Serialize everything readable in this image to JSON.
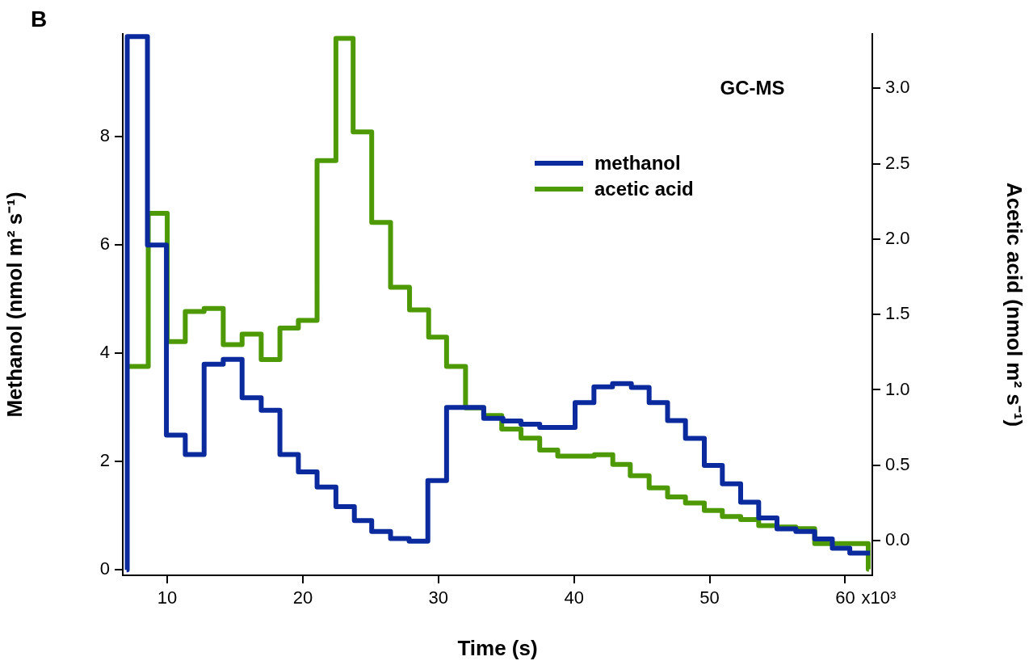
{
  "chart_data": {
    "type": "step",
    "xlabel": "Time (s)",
    "ylabel": "Methanol (nmol m² s⁻¹)",
    "y2label": "Acetic acid (nmol m² s⁻¹)",
    "annotations": [
      "B",
      "GC-MS",
      "x10³"
    ],
    "xlim": [
      6.72,
      62.0
    ],
    "xticks": [
      10,
      20,
      30,
      40,
      50,
      60
    ],
    "ylim": [
      -0.1,
      9.9
    ],
    "yticks": [
      0,
      2,
      4,
      6,
      8
    ],
    "y2lim": [
      -0.23,
      3.36
    ],
    "y2ticks": [
      {
        "value": 0,
        "label": "0.0"
      },
      {
        "value": 0.5,
        "label": "0.5"
      },
      {
        "value": 1,
        "label": "1.0"
      },
      {
        "value": 1.5,
        "label": "1.5"
      },
      {
        "value": 2,
        "label": "2.0"
      },
      {
        "value": 2.5,
        "label": "2.5"
      },
      {
        "value": 3,
        "label": "3.0"
      }
    ],
    "grid": false,
    "legend": "top right",
    "line_style": "solid",
    "marker": "none",
    "series": [
      {
        "name": "methanol",
        "color": "#0a2a9e",
        "x": [
          7.0,
          7.05,
          8.54,
          9.94,
          11.33,
          12.72,
          14.13,
          15.52,
          16.93,
          18.31,
          19.67,
          21.05,
          22.44,
          23.8,
          25.08,
          26.47,
          27.84,
          29.22,
          30.6,
          33.34,
          34.76,
          36.09,
          37.47,
          40.08,
          41.47,
          42.84,
          44.23,
          45.54,
          46.9,
          48.22,
          49.61,
          50.94,
          52.29,
          53.62,
          54.97,
          56.36,
          57.75,
          59.05,
          60.34,
          61.83
        ],
        "values": [
          0,
          9.85,
          6.0,
          2.49,
          2.13,
          3.8,
          3.89,
          3.18,
          2.95,
          2.13,
          1.81,
          1.53,
          1.17,
          0.91,
          0.71,
          0.58,
          0.53,
          1.65,
          3.0,
          2.8,
          2.75,
          2.69,
          2.63,
          3.09,
          3.38,
          3.44,
          3.37,
          3.09,
          2.76,
          2.43,
          1.93,
          1.59,
          1.25,
          0.96,
          0.76,
          0.71,
          0.57,
          0.4,
          0.31,
          0.31
        ]
      },
      {
        "name": "acetic acid",
        "color": "#4e9a06",
        "axis": "y2",
        "x": [
          7.0,
          8.6,
          10.0,
          11.33,
          12.72,
          14.13,
          15.52,
          16.93,
          18.31,
          19.67,
          21.05,
          22.44,
          23.71,
          25.08,
          26.47,
          27.87,
          29.28,
          30.6,
          32.0,
          33.34,
          34.67,
          36.09,
          37.47,
          38.8,
          41.5,
          42.86,
          44.15,
          45.54,
          46.9,
          48.22,
          49.61,
          50.94,
          52.29,
          53.62,
          54.97,
          56.36,
          57.75,
          59.05,
          61.7,
          61.75
        ],
        "values": [
          1.155,
          2.17,
          1.32,
          1.52,
          1.54,
          1.3,
          1.37,
          1.2,
          1.41,
          1.46,
          2.52,
          3.33,
          2.71,
          2.11,
          1.68,
          1.53,
          1.35,
          1.155,
          0.88,
          0.83,
          0.74,
          0.68,
          0.6,
          0.56,
          0.57,
          0.505,
          0.43,
          0.35,
          0.29,
          0.25,
          0.2,
          0.16,
          0.14,
          0.1,
          0.09,
          0.08,
          -0.02,
          -0.02,
          -0.19,
          -0.19
        ]
      }
    ]
  }
}
